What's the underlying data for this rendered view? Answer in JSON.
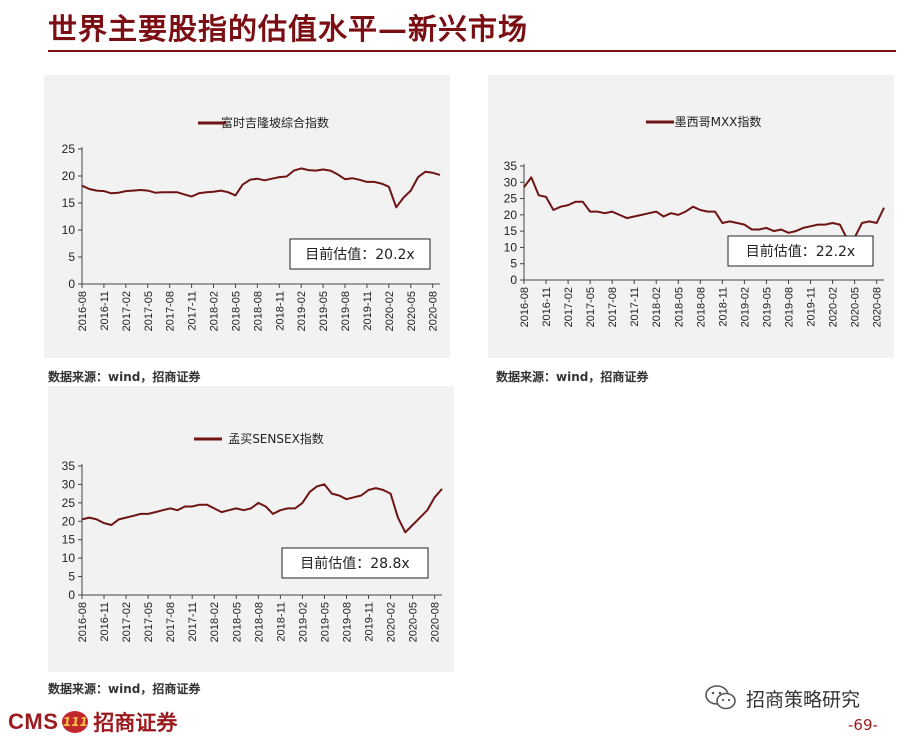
{
  "page": {
    "title": "世界主要股指的估值水平—新兴市场",
    "source_note": "数据来源：wind，招商证券",
    "footer_logo_latin": "CMS",
    "footer_logo_badge": "111",
    "footer_logo_cn": "招商证券",
    "wechat_label": "招商策略研究",
    "page_number": "-69-"
  },
  "colors": {
    "accent": "#7a0e12",
    "series": "#6e1414",
    "panel": "#f2f2f2"
  },
  "chart_data": [
    {
      "type": "line",
      "legend": "富时吉隆坡综合指数",
      "legend_position": "top",
      "annotation": "目前估值：20.2x",
      "ylim": [
        0,
        25
      ],
      "yticks": [
        0,
        5,
        10,
        15,
        20,
        25
      ],
      "xticks": [
        "2016-08",
        "2016-11",
        "2017-02",
        "2017-05",
        "2017-08",
        "2017-11",
        "2018-02",
        "2018-05",
        "2018-08",
        "2018-11",
        "2019-02",
        "2019-05",
        "2019-08",
        "2019-11",
        "2020-02",
        "2020-05",
        "2020-08"
      ],
      "x": [
        "2016-08",
        "2016-09",
        "2016-10",
        "2016-11",
        "2016-12",
        "2017-01",
        "2017-02",
        "2017-03",
        "2017-04",
        "2017-05",
        "2017-06",
        "2017-07",
        "2017-08",
        "2017-09",
        "2017-10",
        "2017-11",
        "2017-12",
        "2018-01",
        "2018-02",
        "2018-03",
        "2018-04",
        "2018-05",
        "2018-06",
        "2018-07",
        "2018-08",
        "2018-09",
        "2018-10",
        "2018-11",
        "2018-12",
        "2019-01",
        "2019-02",
        "2019-03",
        "2019-04",
        "2019-05",
        "2019-06",
        "2019-07",
        "2019-08",
        "2019-09",
        "2019-10",
        "2019-11",
        "2019-12",
        "2020-01",
        "2020-02",
        "2020-03",
        "2020-04",
        "2020-05",
        "2020-06",
        "2020-07",
        "2020-08",
        "2020-09"
      ],
      "values": [
        18.2,
        17.6,
        17.3,
        17.2,
        16.8,
        16.9,
        17.2,
        17.3,
        17.4,
        17.3,
        16.9,
        17.0,
        17.0,
        17.0,
        16.6,
        16.2,
        16.8,
        17.0,
        17.1,
        17.3,
        17.0,
        16.4,
        18.4,
        19.3,
        19.5,
        19.2,
        19.5,
        19.8,
        19.9,
        21.0,
        21.4,
        21.1,
        21.0,
        21.2,
        21.0,
        20.3,
        19.4,
        19.6,
        19.3,
        18.9,
        18.9,
        18.6,
        18.0,
        14.2,
        16.0,
        17.3,
        19.8,
        20.8,
        20.6,
        20.2
      ]
    },
    {
      "type": "line",
      "legend": "墨西哥MXX指数",
      "legend_position": "top",
      "annotation": "目前估值：22.2x",
      "ylim": [
        0,
        35
      ],
      "yticks": [
        0,
        5,
        10,
        15,
        20,
        25,
        30,
        35
      ],
      "xticks": [
        "2016-08",
        "2016-11",
        "2017-02",
        "2017-05",
        "2017-08",
        "2017-11",
        "2018-02",
        "2018-05",
        "2018-08",
        "2018-11",
        "2019-02",
        "2019-05",
        "2019-08",
        "2019-11",
        "2020-02",
        "2020-05",
        "2020-08"
      ],
      "x": [
        "2016-08",
        "2016-09",
        "2016-10",
        "2016-11",
        "2016-12",
        "2017-01",
        "2017-02",
        "2017-03",
        "2017-04",
        "2017-05",
        "2017-06",
        "2017-07",
        "2017-08",
        "2017-09",
        "2017-10",
        "2017-11",
        "2017-12",
        "2018-01",
        "2018-02",
        "2018-03",
        "2018-04",
        "2018-05",
        "2018-06",
        "2018-07",
        "2018-08",
        "2018-09",
        "2018-10",
        "2018-11",
        "2018-12",
        "2019-01",
        "2019-02",
        "2019-03",
        "2019-04",
        "2019-05",
        "2019-06",
        "2019-07",
        "2019-08",
        "2019-09",
        "2019-10",
        "2019-11",
        "2019-12",
        "2020-01",
        "2020-02",
        "2020-03",
        "2020-04",
        "2020-05",
        "2020-06",
        "2020-07",
        "2020-08",
        "2020-09"
      ],
      "values": [
        28.5,
        31.5,
        26.0,
        25.5,
        21.5,
        22.5,
        23.0,
        24.0,
        24.0,
        21.0,
        21.0,
        20.5,
        21.0,
        20.0,
        19.0,
        19.5,
        20.0,
        20.5,
        21.0,
        19.5,
        20.5,
        20.0,
        21.0,
        22.5,
        21.5,
        21.0,
        21.0,
        17.5,
        18.0,
        17.5,
        17.0,
        15.5,
        15.5,
        16.0,
        15.0,
        15.5,
        14.5,
        15.0,
        16.0,
        16.5,
        17.0,
        17.0,
        17.5,
        17.0,
        12.5,
        13.0,
        17.5,
        18.0,
        17.5,
        22.2
      ]
    },
    {
      "type": "line",
      "legend": "孟买SENSEX指数",
      "legend_position": "top",
      "annotation": "目前估值：28.8x",
      "ylim": [
        0,
        35
      ],
      "yticks": [
        0,
        5,
        10,
        15,
        20,
        25,
        30,
        35
      ],
      "xticks": [
        "2016-08",
        "2016-11",
        "2017-02",
        "2017-05",
        "2017-08",
        "2017-11",
        "2018-02",
        "2018-05",
        "2018-08",
        "2018-11",
        "2019-02",
        "2019-05",
        "2019-08",
        "2019-11",
        "2020-02",
        "2020-05",
        "2020-08"
      ],
      "x": [
        "2016-08",
        "2016-09",
        "2016-10",
        "2016-11",
        "2016-12",
        "2017-01",
        "2017-02",
        "2017-03",
        "2017-04",
        "2017-05",
        "2017-06",
        "2017-07",
        "2017-08",
        "2017-09",
        "2017-10",
        "2017-11",
        "2017-12",
        "2018-01",
        "2018-02",
        "2018-03",
        "2018-04",
        "2018-05",
        "2018-06",
        "2018-07",
        "2018-08",
        "2018-09",
        "2018-10",
        "2018-11",
        "2018-12",
        "2019-01",
        "2019-02",
        "2019-03",
        "2019-04",
        "2019-05",
        "2019-06",
        "2019-07",
        "2019-08",
        "2019-09",
        "2019-10",
        "2019-11",
        "2019-12",
        "2020-01",
        "2020-02",
        "2020-03",
        "2020-04",
        "2020-05",
        "2020-06",
        "2020-07",
        "2020-08",
        "2020-09"
      ],
      "values": [
        20.5,
        21.0,
        20.5,
        19.5,
        19.0,
        20.5,
        21.0,
        21.5,
        22.0,
        22.0,
        22.5,
        23.0,
        23.5,
        23.0,
        24.0,
        24.0,
        24.5,
        24.5,
        23.5,
        22.5,
        23.0,
        23.5,
        23.0,
        23.5,
        25.0,
        24.0,
        22.0,
        23.0,
        23.5,
        23.5,
        25.0,
        28.0,
        29.5,
        30.0,
        27.5,
        27.0,
        26.0,
        26.5,
        27.0,
        28.5,
        29.0,
        28.5,
        27.5,
        21.0,
        17.0,
        19.0,
        21.0,
        23.0,
        26.5,
        28.8
      ]
    }
  ]
}
